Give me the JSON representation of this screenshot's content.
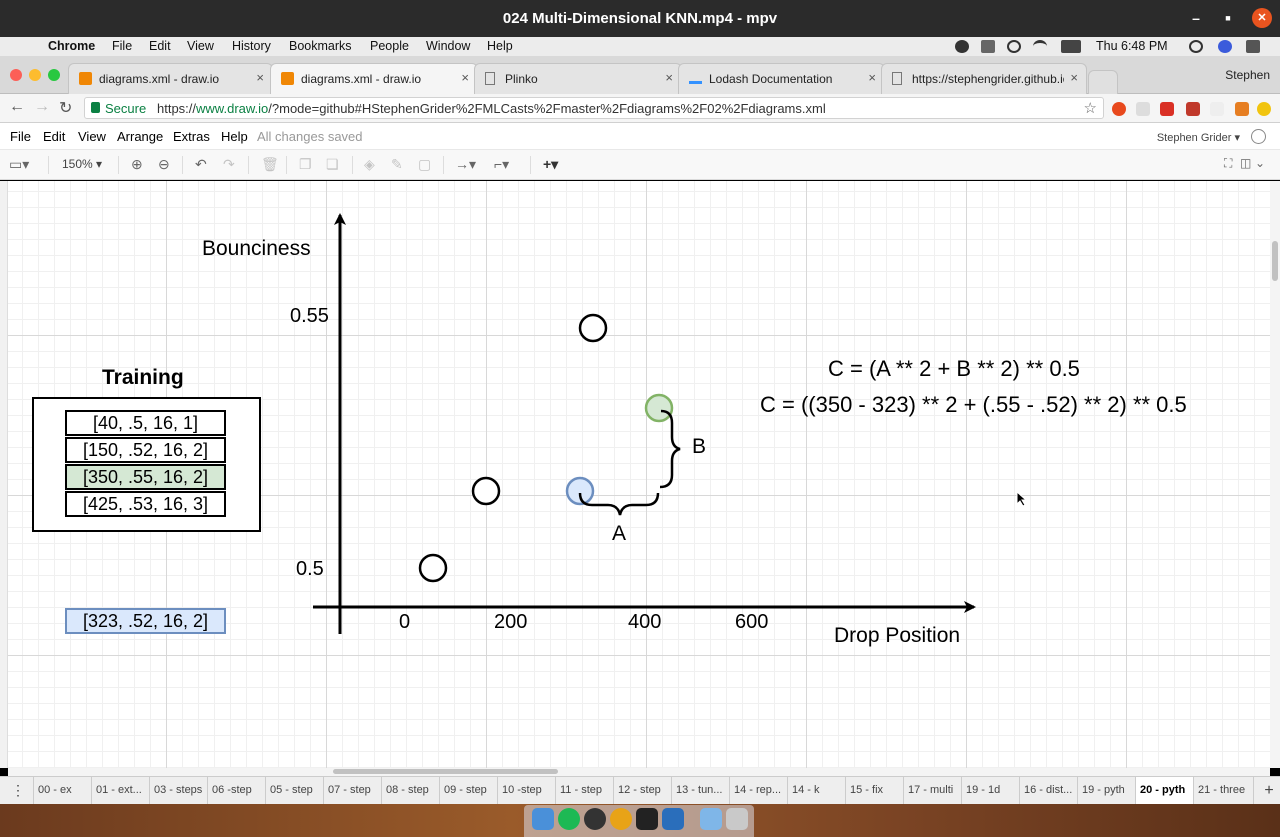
{
  "window": {
    "title": "024 Multi-Dimensional KNN.mp4 - mpv",
    "minimize": "–",
    "maximize": "■",
    "close": "✕"
  },
  "mac_menu": {
    "apple": "",
    "items": [
      "Chrome",
      "File",
      "Edit",
      "View",
      "History",
      "Bookmarks",
      "People",
      "Window",
      "Help"
    ],
    "clock": "Thu 6:48 PM"
  },
  "tabs": [
    {
      "label": "diagrams.xml - draw.io",
      "icon": "drawio-icon",
      "active": false
    },
    {
      "label": "diagrams.xml - draw.io",
      "icon": "drawio-icon",
      "active": true
    },
    {
      "label": "Plinko",
      "icon": "page-icon",
      "active": false
    },
    {
      "label": "Lodash Documentation",
      "icon": "lodash-icon",
      "active": false
    },
    {
      "label": "https://stephengrider.github.io",
      "icon": "page-icon",
      "active": false
    }
  ],
  "tab_close": "×",
  "profile": "Stephen",
  "address": {
    "secure": "Secure",
    "scheme": "https://",
    "host": "www.draw.io",
    "path": "/?mode=github#HStephenGrider%2FMLCasts%2Fmaster%2Fdiagrams%2F02%2Fdiagrams.xml",
    "star": "☆"
  },
  "drawio_menu": {
    "items": [
      "File",
      "Edit",
      "View",
      "Arrange",
      "Extras",
      "Help"
    ],
    "status": "All changes saved",
    "user": "Stephen Grider ▾"
  },
  "toolbar": {
    "zoom": "150%"
  },
  "diagram": {
    "y_axis_label": "Bounciness",
    "x_axis_label": "Drop Position",
    "y_ticks": [
      "0.55",
      "0.5"
    ],
    "x_ticks": [
      "0",
      "200",
      "400",
      "600"
    ],
    "training_title": "Training",
    "training_rows": [
      "[40, .5, 16, 1]",
      "[150, .52, 16, 2]",
      "[350, .55, 16, 2]",
      "[425, .53, 16, 3]"
    ],
    "test_point": "[323, .52, 16, 2]",
    "brace_a": "A",
    "brace_b": "B",
    "formula_1": "C = (A ** 2 + B ** 2) ** 0.5",
    "formula_2": "C = ((350 - 323) ** 2 + (.55 - .52) ** 2) ** 0.5",
    "colors": {
      "green_fill": "#d5e8d4",
      "green_stroke": "#82b366",
      "blue_fill": "#dae8fc",
      "blue_stroke": "#6c8ebf"
    }
  },
  "page_tabs": [
    "00 - ex",
    "01 - ext...",
    "03 - steps",
    "06 -step",
    "05 - step",
    "07 - step",
    "08 - step",
    "09 - step",
    "10 -step",
    "11 - step",
    "12 - step",
    "13 - tun...",
    "14 - rep...",
    "14 - k",
    "15 - fix",
    "17 - multi",
    "19 - 1d",
    "16 - dist...",
    "19 - pyth",
    "20 - pyth",
    "21 - three"
  ],
  "active_page": "20 - pyth",
  "add_page": "+"
}
